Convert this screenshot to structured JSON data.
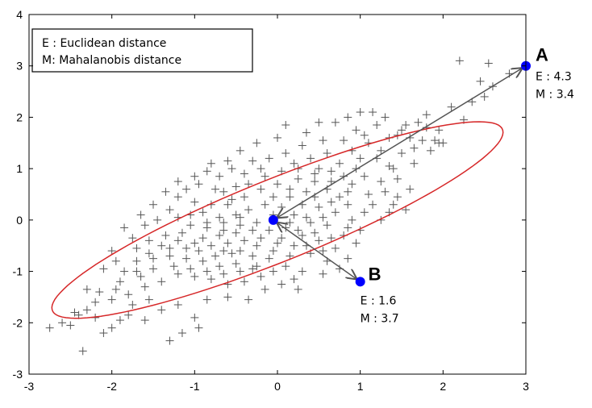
{
  "chart_data": {
    "type": "scatter",
    "xlim": [
      -3,
      3
    ],
    "ylim": [
      -3,
      4
    ],
    "x_ticks": [
      "-3",
      "-2",
      "-1",
      "0",
      "1",
      "2",
      "3"
    ],
    "y_ticks": [
      "-3",
      "-2",
      "-1",
      "0",
      "1",
      "2",
      "3",
      "4"
    ],
    "grid": false,
    "legend": {
      "placement": "top-left",
      "entries": [
        "E : Euclidean distance",
        "M: Mahalanobis distance"
      ]
    },
    "ellipse": {
      "center": [
        0,
        0
      ],
      "semi_major": 3.25,
      "semi_minor": 0.72,
      "angle_deg": 34,
      "color": "#d62728"
    },
    "mean_point": {
      "x": -0.05,
      "y": 0.0,
      "color": "#0000ff"
    },
    "highlighted_points": [
      {
        "label": "A",
        "x": 3.0,
        "y": 3.0,
        "E_text": "E : 4.3",
        "M_text": "M : 3.4",
        "color": "#0000ff"
      },
      {
        "label": "B",
        "x": 1.0,
        "y": -1.2,
        "E_text": "E : 1.6",
        "M_text": "M : 3.7",
        "color": "#0000ff"
      }
    ],
    "scatter_series": {
      "marker": "plus",
      "color": "#555555",
      "points": [
        [
          2.2,
          3.1
        ],
        [
          2.55,
          3.05
        ],
        [
          2.6,
          2.6
        ],
        [
          2.45,
          2.7
        ],
        [
          2.5,
          2.4
        ],
        [
          2.8,
          2.85
        ],
        [
          1.9,
          1.55
        ],
        [
          1.95,
          1.5
        ],
        [
          1.55,
          1.85
        ],
        [
          1.8,
          1.8
        ],
        [
          1.6,
          1.6
        ],
        [
          1.7,
          1.9
        ],
        [
          1.5,
          1.3
        ],
        [
          1.45,
          1.65
        ],
        [
          1.3,
          2.0
        ],
        [
          1.15,
          2.1
        ],
        [
          1.0,
          2.1
        ],
        [
          0.95,
          1.75
        ],
        [
          1.1,
          1.5
        ],
        [
          1.25,
          1.35
        ],
        [
          1.2,
          1.2
        ],
        [
          1.35,
          1.05
        ],
        [
          0.9,
          1.35
        ],
        [
          0.8,
          1.55
        ],
        [
          0.7,
          1.9
        ],
        [
          0.6,
          1.3
        ],
        [
          0.55,
          1.55
        ],
        [
          0.75,
          1.1
        ],
        [
          0.5,
          1.0
        ],
        [
          0.4,
          1.2
        ],
        [
          1.5,
          1.75
        ],
        [
          1.65,
          1.4
        ],
        [
          1.4,
          1.0
        ],
        [
          1.05,
          0.85
        ],
        [
          0.95,
          1.0
        ],
        [
          1.6,
          0.6
        ],
        [
          1.55,
          0.2
        ],
        [
          1.4,
          0.3
        ],
        [
          0.3,
          1.45
        ],
        [
          0.2,
          1.1
        ],
        [
          0.1,
          1.3
        ],
        [
          0.0,
          1.6
        ],
        [
          -0.1,
          1.2
        ],
        [
          -0.2,
          1.0
        ],
        [
          0.25,
          0.8
        ],
        [
          0.45,
          0.75
        ],
        [
          0.6,
          0.6
        ],
        [
          0.75,
          0.45
        ],
        [
          0.85,
          0.3
        ],
        [
          0.9,
          0.7
        ],
        [
          1.1,
          0.5
        ],
        [
          1.25,
          0.75
        ],
        [
          0.65,
          0.95
        ],
        [
          0.35,
          0.55
        ],
        [
          -0.3,
          1.15
        ],
        [
          -0.4,
          0.9
        ],
        [
          -0.55,
          1.0
        ],
        [
          -0.5,
          0.65
        ],
        [
          -0.7,
          0.85
        ],
        [
          -0.85,
          0.95
        ],
        [
          -0.65,
          0.55
        ],
        [
          -0.95,
          0.7
        ],
        [
          -1.1,
          0.6
        ],
        [
          -1.2,
          0.45
        ],
        [
          -1.0,
          0.35
        ],
        [
          -0.8,
          0.3
        ],
        [
          -0.6,
          0.3
        ],
        [
          -0.4,
          0.45
        ],
        [
          -0.2,
          0.6
        ],
        [
          0.0,
          0.7
        ],
        [
          0.15,
          0.45
        ],
        [
          0.3,
          0.3
        ],
        [
          0.5,
          0.25
        ],
        [
          0.7,
          0.15
        ],
        [
          0.9,
          0.0
        ],
        [
          1.0,
          -0.2
        ],
        [
          0.8,
          -0.3
        ],
        [
          0.6,
          -0.1
        ],
        [
          0.4,
          -0.05
        ],
        [
          0.2,
          0.1
        ],
        [
          0.05,
          0.25
        ],
        [
          -0.15,
          0.3
        ],
        [
          -0.35,
          0.2
        ],
        [
          -0.5,
          0.1
        ],
        [
          -0.7,
          0.05
        ],
        [
          -0.9,
          0.15
        ],
        [
          -1.3,
          0.2
        ],
        [
          -1.45,
          0.0
        ],
        [
          -1.6,
          -0.1
        ],
        [
          -1.75,
          -0.35
        ],
        [
          -1.2,
          0.05
        ],
        [
          -1.05,
          -0.1
        ],
        [
          -0.85,
          -0.15
        ],
        [
          -0.65,
          -0.2
        ],
        [
          -0.45,
          -0.1
        ],
        [
          -0.25,
          -0.05
        ],
        [
          -0.1,
          -0.2
        ],
        [
          0.1,
          -0.15
        ],
        [
          0.3,
          -0.3
        ],
        [
          0.5,
          -0.4
        ],
        [
          0.7,
          -0.55
        ],
        [
          0.85,
          -0.75
        ],
        [
          0.6,
          -0.8
        ],
        [
          0.4,
          -0.65
        ],
        [
          0.2,
          -0.5
        ],
        [
          0.0,
          -0.45
        ],
        [
          -0.2,
          -0.35
        ],
        [
          -0.4,
          -0.4
        ],
        [
          -0.6,
          -0.45
        ],
        [
          -0.8,
          -0.5
        ],
        [
          -1.0,
          -0.45
        ],
        [
          -1.2,
          -0.4
        ],
        [
          -1.4,
          -0.5
        ],
        [
          -1.55,
          -0.65
        ],
        [
          -1.7,
          -0.8
        ],
        [
          -1.85,
          -1.0
        ],
        [
          -1.3,
          -0.7
        ],
        [
          -1.1,
          -0.75
        ],
        [
          -0.9,
          -0.8
        ],
        [
          -0.7,
          -0.9
        ],
        [
          -0.5,
          -0.85
        ],
        [
          -0.3,
          -0.7
        ],
        [
          -0.1,
          -0.75
        ],
        [
          0.1,
          -0.9
        ],
        [
          0.3,
          -1.0
        ],
        [
          -0.2,
          -1.1
        ],
        [
          -0.4,
          -1.2
        ],
        [
          -0.6,
          -1.25
        ],
        [
          -0.8,
          -1.15
        ],
        [
          -1.0,
          -1.1
        ],
        [
          -1.2,
          -1.05
        ],
        [
          -1.4,
          -1.2
        ],
        [
          -1.6,
          -1.3
        ],
        [
          -1.8,
          -1.45
        ],
        [
          -2.0,
          -1.55
        ],
        [
          -2.2,
          -1.6
        ],
        [
          -1.5,
          -0.95
        ],
        [
          -1.65,
          -1.1
        ],
        [
          -1.9,
          -1.2
        ],
        [
          -2.1,
          -0.95
        ],
        [
          -2.3,
          -1.35
        ],
        [
          -2.4,
          -1.85
        ],
        [
          -2.5,
          -2.05
        ],
        [
          -2.75,
          -2.1
        ],
        [
          -2.6,
          -2.0
        ],
        [
          -2.35,
          -2.55
        ],
        [
          -2.2,
          -1.9
        ],
        [
          -2.0,
          -2.1
        ],
        [
          -1.8,
          -1.85
        ],
        [
          -1.6,
          -1.95
        ],
        [
          -1.4,
          -1.75
        ],
        [
          -1.2,
          -1.65
        ],
        [
          -1.0,
          -1.9
        ],
        [
          -1.15,
          -2.2
        ],
        [
          -1.3,
          -2.35
        ],
        [
          -0.95,
          -2.1
        ],
        [
          -0.85,
          -1.55
        ],
        [
          -0.6,
          -1.5
        ],
        [
          -0.35,
          -1.55
        ],
        [
          -0.15,
          -1.35
        ],
        [
          0.05,
          -1.25
        ],
        [
          0.25,
          -1.35
        ],
        [
          -1.55,
          -1.55
        ],
        [
          -1.75,
          -1.65
        ],
        [
          -1.9,
          -1.95
        ],
        [
          -2.1,
          -2.2
        ],
        [
          -0.45,
          1.35
        ],
        [
          -0.25,
          1.5
        ],
        [
          0.1,
          1.85
        ],
        [
          0.35,
          1.7
        ],
        [
          0.5,
          1.9
        ],
        [
          0.85,
          2.0
        ],
        [
          1.05,
          1.65
        ],
        [
          1.2,
          1.85
        ],
        [
          1.35,
          1.6
        ],
        [
          1.75,
          1.55
        ],
        [
          1.85,
          1.35
        ],
        [
          1.65,
          1.1
        ],
        [
          1.45,
          0.8
        ],
        [
          1.3,
          0.55
        ],
        [
          1.15,
          0.3
        ],
        [
          1.35,
          0.15
        ],
        [
          0.95,
          -0.45
        ],
        [
          0.75,
          -0.95
        ],
        [
          0.55,
          -1.05
        ],
        [
          0.2,
          -1.15
        ],
        [
          -0.05,
          -0.6
        ],
        [
          -0.3,
          -0.95
        ],
        [
          -0.55,
          -0.65
        ],
        [
          -0.75,
          -0.7
        ],
        [
          -0.95,
          -0.6
        ],
        [
          -1.15,
          -0.25
        ],
        [
          -1.35,
          -0.3
        ],
        [
          -1.55,
          -0.4
        ],
        [
          -1.7,
          -0.55
        ],
        [
          -0.75,
          0.6
        ],
        [
          -0.55,
          0.4
        ],
        [
          -0.35,
          0.7
        ],
        [
          -0.15,
          0.85
        ],
        [
          0.05,
          0.95
        ],
        [
          0.25,
          1.0
        ],
        [
          0.45,
          0.45
        ],
        [
          0.65,
          0.35
        ],
        [
          0.85,
          0.55
        ],
        [
          1.05,
          0.15
        ],
        [
          0.55,
          0.05
        ],
        [
          0.35,
          0.05
        ],
        [
          0.15,
          -0.05
        ],
        [
          -0.05,
          0.1
        ],
        [
          -0.3,
          -0.2
        ],
        [
          -0.5,
          -0.25
        ],
        [
          -0.7,
          -0.3
        ],
        [
          -0.9,
          -0.35
        ],
        [
          -1.1,
          -0.55
        ],
        [
          -1.3,
          -0.55
        ],
        [
          -1.5,
          -0.75
        ],
        [
          -1.7,
          -1.0
        ],
        [
          -1.95,
          -1.35
        ],
        [
          -2.15,
          -1.4
        ],
        [
          -2.3,
          -1.75
        ],
        [
          -2.45,
          -1.8
        ],
        [
          -1.25,
          -0.9
        ],
        [
          -1.05,
          -0.95
        ],
        [
          -0.85,
          -1.0
        ],
        [
          -0.65,
          -1.05
        ],
        [
          -0.45,
          -1.0
        ],
        [
          -0.25,
          -0.9
        ],
        [
          -0.05,
          -1.0
        ],
        [
          0.15,
          -0.7
        ],
        [
          0.35,
          -0.5
        ],
        [
          0.55,
          -0.6
        ],
        [
          -0.6,
          1.15
        ],
        [
          -0.8,
          1.1
        ],
        [
          -1.0,
          0.85
        ],
        [
          -1.2,
          0.75
        ],
        [
          -1.35,
          0.55
        ],
        [
          -1.5,
          0.3
        ],
        [
          -1.65,
          0.1
        ],
        [
          -1.85,
          -0.15
        ],
        [
          -2.0,
          -0.6
        ],
        [
          -1.95,
          -0.8
        ],
        [
          2.0,
          1.5
        ],
        [
          2.1,
          2.2
        ],
        [
          1.8,
          2.05
        ],
        [
          1.95,
          1.75
        ],
        [
          2.35,
          2.3
        ],
        [
          2.25,
          1.95
        ],
        [
          0.15,
          0.6
        ],
        [
          -0.05,
          0.45
        ],
        [
          0.45,
          0.9
        ],
        [
          0.65,
          0.75
        ],
        [
          -0.45,
          0.05
        ],
        [
          -0.65,
          -0.05
        ],
        [
          -0.85,
          -0.05
        ],
        [
          -1.05,
          0.1
        ],
        [
          -0.25,
          -0.5
        ],
        [
          -0.45,
          -0.6
        ],
        [
          -0.65,
          -0.6
        ],
        [
          0.05,
          -0.35
        ],
        [
          0.25,
          -0.2
        ],
        [
          0.45,
          -0.25
        ],
        [
          0.65,
          -0.35
        ],
        [
          0.85,
          -0.15
        ],
        [
          1.25,
          0.0
        ],
        [
          1.45,
          0.45
        ],
        [
          1.0,
          1.2
        ],
        [
          0.8,
          0.85
        ]
      ]
    }
  }
}
